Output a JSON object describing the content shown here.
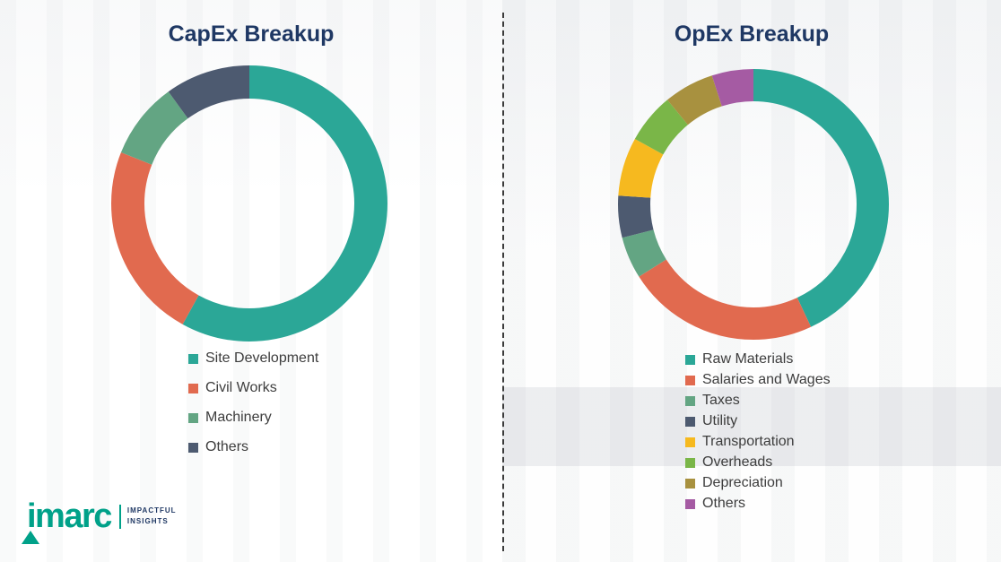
{
  "chart_data": [
    {
      "type": "pie",
      "donut": true,
      "title": "CapEx Breakup",
      "labels": [
        "Site Development",
        "Civil Works",
        "Machinery",
        "Others"
      ],
      "values": [
        58,
        23,
        9,
        10
      ],
      "colors": [
        "#2BA797",
        "#E16A4F",
        "#63A583",
        "#4D5A70"
      ],
      "legend_position": "bottom"
    },
    {
      "type": "pie",
      "donut": true,
      "title": "OpEx Breakup",
      "labels": [
        "Raw Materials",
        "Salaries and Wages",
        "Taxes",
        "Utility",
        "Transportation",
        "Overheads",
        "Depreciation",
        "Others"
      ],
      "values": [
        43,
        23,
        5,
        5,
        7,
        6,
        6,
        5
      ],
      "colors": [
        "#2BA797",
        "#E16A4F",
        "#63A583",
        "#4D5A70",
        "#F6B91F",
        "#7AB648",
        "#A8913F",
        "#A55BA3"
      ],
      "legend_position": "bottom"
    }
  ],
  "logo": {
    "brand": "imarc",
    "tagline_top": "IMPACTFUL",
    "tagline_bottom": "INSIGHTS"
  },
  "style": {
    "title_color": "#1F3864",
    "legend_text_color": "#3D3D3D",
    "divider_color": "#3B3B3B",
    "brand_teal": "#00A189"
  }
}
